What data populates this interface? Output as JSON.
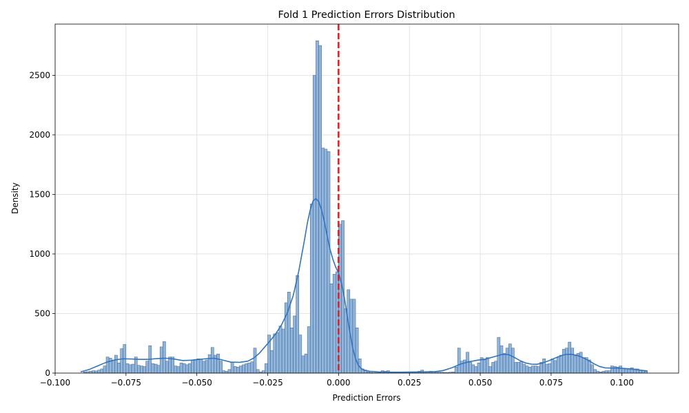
{
  "chart_data": {
    "type": "bar",
    "title": "Fold 1 Prediction Errors Distribution",
    "xlabel": "Prediction Errors",
    "ylabel": "Density",
    "xlim": [
      -0.1,
      0.12
    ],
    "ylim": [
      0,
      2930
    ],
    "grid": true,
    "x_ticks": [
      -0.1,
      -0.075,
      -0.05,
      -0.025,
      0.0,
      0.025,
      0.05,
      0.075,
      0.1
    ],
    "x_tick_labels": [
      "−0.100",
      "−0.075",
      "−0.050",
      "−0.025",
      "0.000",
      "0.025",
      "0.050",
      "0.075",
      "0.100"
    ],
    "y_ticks": [
      0,
      500,
      1000,
      1500,
      2000,
      2500
    ],
    "y_tick_labels": [
      "0",
      "500",
      "1000",
      "1500",
      "2000",
      "2500"
    ],
    "bar_color": "#8fb5dd",
    "bar_edge_color": "#3b5f86",
    "kde_color": "#2d74c7",
    "reference_line": {
      "x": 0.0,
      "color": "#e31a1c",
      "style": "dashed"
    },
    "bins": [
      [
        -0.09,
        10
      ],
      [
        -0.089,
        12
      ],
      [
        -0.088,
        15
      ],
      [
        -0.087,
        20
      ],
      [
        -0.086,
        18
      ],
      [
        -0.085,
        25
      ],
      [
        -0.084,
        35
      ],
      [
        -0.083,
        60
      ],
      [
        -0.082,
        135
      ],
      [
        -0.081,
        125
      ],
      [
        -0.08,
        110
      ],
      [
        -0.079,
        150
      ],
      [
        -0.078,
        85
      ],
      [
        -0.077,
        205
      ],
      [
        -0.076,
        240
      ],
      [
        -0.075,
        80
      ],
      [
        -0.074,
        70
      ],
      [
        -0.073,
        75
      ],
      [
        -0.072,
        135
      ],
      [
        -0.071,
        65
      ],
      [
        -0.07,
        60
      ],
      [
        -0.069,
        55
      ],
      [
        -0.068,
        100
      ],
      [
        -0.067,
        230
      ],
      [
        -0.066,
        80
      ],
      [
        -0.065,
        75
      ],
      [
        -0.064,
        65
      ],
      [
        -0.063,
        220
      ],
      [
        -0.062,
        265
      ],
      [
        -0.061,
        100
      ],
      [
        -0.06,
        135
      ],
      [
        -0.059,
        135
      ],
      [
        -0.058,
        60
      ],
      [
        -0.057,
        55
      ],
      [
        -0.056,
        85
      ],
      [
        -0.055,
        80
      ],
      [
        -0.054,
        70
      ],
      [
        -0.053,
        80
      ],
      [
        -0.052,
        110
      ],
      [
        -0.051,
        115
      ],
      [
        -0.05,
        120
      ],
      [
        -0.049,
        115
      ],
      [
        -0.048,
        100
      ],
      [
        -0.047,
        110
      ],
      [
        -0.046,
        155
      ],
      [
        -0.045,
        215
      ],
      [
        -0.044,
        150
      ],
      [
        -0.043,
        160
      ],
      [
        -0.042,
        100
      ],
      [
        -0.041,
        20
      ],
      [
        -0.04,
        15
      ],
      [
        -0.039,
        30
      ],
      [
        -0.038,
        90
      ],
      [
        -0.037,
        55
      ],
      [
        -0.036,
        50
      ],
      [
        -0.035,
        60
      ],
      [
        -0.034,
        70
      ],
      [
        -0.033,
        80
      ],
      [
        -0.032,
        85
      ],
      [
        -0.031,
        95
      ],
      [
        -0.03,
        210
      ],
      [
        -0.029,
        30
      ],
      [
        -0.028,
        10
      ],
      [
        -0.027,
        20
      ],
      [
        -0.026,
        80
      ],
      [
        -0.025,
        320
      ],
      [
        -0.024,
        190
      ],
      [
        -0.023,
        330
      ],
      [
        -0.022,
        340
      ],
      [
        -0.021,
        395
      ],
      [
        -0.02,
        370
      ],
      [
        -0.019,
        590
      ],
      [
        -0.018,
        680
      ],
      [
        -0.017,
        380
      ],
      [
        -0.016,
        480
      ],
      [
        -0.015,
        820
      ],
      [
        -0.014,
        320
      ],
      [
        -0.013,
        145
      ],
      [
        -0.012,
        160
      ],
      [
        -0.011,
        390
      ],
      [
        -0.01,
        1420
      ],
      [
        -0.009,
        2500
      ],
      [
        -0.008,
        2790
      ],
      [
        -0.007,
        2750
      ],
      [
        -0.006,
        1890
      ],
      [
        -0.005,
        1880
      ],
      [
        -0.004,
        1860
      ],
      [
        -0.003,
        750
      ],
      [
        -0.002,
        830
      ],
      [
        -0.001,
        850
      ],
      [
        0.0,
        1250
      ],
      [
        0.001,
        1280
      ],
      [
        0.002,
        540
      ],
      [
        0.003,
        700
      ],
      [
        0.004,
        620
      ],
      [
        0.005,
        620
      ],
      [
        0.006,
        380
      ],
      [
        0.007,
        120
      ],
      [
        0.008,
        35
      ],
      [
        0.009,
        25
      ],
      [
        0.01,
        10
      ],
      [
        0.011,
        5
      ],
      [
        0.012,
        3
      ],
      [
        0.013,
        3
      ],
      [
        0.014,
        5
      ],
      [
        0.015,
        20
      ],
      [
        0.016,
        15
      ],
      [
        0.017,
        20
      ],
      [
        0.018,
        10
      ],
      [
        0.019,
        10
      ],
      [
        0.02,
        8
      ],
      [
        0.021,
        8
      ],
      [
        0.022,
        10
      ],
      [
        0.023,
        10
      ],
      [
        0.024,
        10
      ],
      [
        0.025,
        8
      ],
      [
        0.026,
        10
      ],
      [
        0.027,
        10
      ],
      [
        0.028,
        15
      ],
      [
        0.029,
        25
      ],
      [
        0.03,
        10
      ],
      [
        0.031,
        10
      ],
      [
        0.032,
        15
      ],
      [
        0.033,
        10
      ],
      [
        0.034,
        8
      ],
      [
        0.035,
        8
      ],
      [
        0.036,
        8
      ],
      [
        0.037,
        5
      ],
      [
        0.038,
        5
      ],
      [
        0.039,
        8
      ],
      [
        0.04,
        10
      ],
      [
        0.041,
        50
      ],
      [
        0.042,
        210
      ],
      [
        0.043,
        100
      ],
      [
        0.044,
        110
      ],
      [
        0.045,
        175
      ],
      [
        0.046,
        90
      ],
      [
        0.047,
        70
      ],
      [
        0.048,
        55
      ],
      [
        0.049,
        85
      ],
      [
        0.05,
        130
      ],
      [
        0.051,
        110
      ],
      [
        0.052,
        130
      ],
      [
        0.053,
        55
      ],
      [
        0.054,
        90
      ],
      [
        0.055,
        100
      ],
      [
        0.056,
        300
      ],
      [
        0.057,
        230
      ],
      [
        0.058,
        165
      ],
      [
        0.059,
        210
      ],
      [
        0.06,
        245
      ],
      [
        0.061,
        210
      ],
      [
        0.062,
        90
      ],
      [
        0.063,
        90
      ],
      [
        0.064,
        95
      ],
      [
        0.065,
        75
      ],
      [
        0.066,
        60
      ],
      [
        0.067,
        50
      ],
      [
        0.068,
        60
      ],
      [
        0.069,
        60
      ],
      [
        0.07,
        55
      ],
      [
        0.071,
        90
      ],
      [
        0.072,
        120
      ],
      [
        0.073,
        75
      ],
      [
        0.074,
        80
      ],
      [
        0.075,
        120
      ],
      [
        0.076,
        105
      ],
      [
        0.077,
        130
      ],
      [
        0.078,
        150
      ],
      [
        0.079,
        200
      ],
      [
        0.08,
        210
      ],
      [
        0.081,
        260
      ],
      [
        0.082,
        210
      ],
      [
        0.083,
        145
      ],
      [
        0.084,
        165
      ],
      [
        0.085,
        175
      ],
      [
        0.086,
        130
      ],
      [
        0.087,
        130
      ],
      [
        0.088,
        110
      ],
      [
        0.089,
        70
      ],
      [
        0.09,
        30
      ],
      [
        0.091,
        15
      ],
      [
        0.092,
        10
      ],
      [
        0.093,
        15
      ],
      [
        0.094,
        20
      ],
      [
        0.095,
        20
      ],
      [
        0.096,
        60
      ],
      [
        0.097,
        55
      ],
      [
        0.098,
        50
      ],
      [
        0.099,
        60
      ],
      [
        0.1,
        40
      ],
      [
        0.101,
        35
      ],
      [
        0.102,
        35
      ],
      [
        0.103,
        45
      ],
      [
        0.104,
        35
      ],
      [
        0.105,
        35
      ],
      [
        0.106,
        25
      ],
      [
        0.107,
        20
      ],
      [
        0.108,
        15
      ]
    ],
    "kde": [
      [
        -0.091,
        10
      ],
      [
        -0.088,
        30
      ],
      [
        -0.085,
        60
      ],
      [
        -0.082,
        90
      ],
      [
        -0.079,
        110
      ],
      [
        -0.076,
        120
      ],
      [
        -0.073,
        118
      ],
      [
        -0.07,
        115
      ],
      [
        -0.067,
        115
      ],
      [
        -0.064,
        122
      ],
      [
        -0.061,
        125
      ],
      [
        -0.058,
        118
      ],
      [
        -0.055,
        105
      ],
      [
        -0.052,
        108
      ],
      [
        -0.049,
        115
      ],
      [
        -0.046,
        122
      ],
      [
        -0.044,
        125
      ],
      [
        -0.041,
        110
      ],
      [
        -0.038,
        92
      ],
      [
        -0.035,
        90
      ],
      [
        -0.032,
        100
      ],
      [
        -0.03,
        125
      ],
      [
        -0.028,
        165
      ],
      [
        -0.026,
        220
      ],
      [
        -0.024,
        275
      ],
      [
        -0.022,
        335
      ],
      [
        -0.02,
        410
      ],
      [
        -0.018,
        510
      ],
      [
        -0.016,
        650
      ],
      [
        -0.014,
        860
      ],
      [
        -0.012,
        1120
      ],
      [
        -0.011,
        1260
      ],
      [
        -0.01,
        1370
      ],
      [
        -0.009,
        1445
      ],
      [
        -0.008,
        1465
      ],
      [
        -0.007,
        1440
      ],
      [
        -0.006,
        1370
      ],
      [
        -0.005,
        1270
      ],
      [
        -0.004,
        1150
      ],
      [
        -0.003,
        1040
      ],
      [
        -0.002,
        955
      ],
      [
        -0.001,
        890
      ],
      [
        0.0,
        840
      ],
      [
        0.001,
        760
      ],
      [
        0.002,
        640
      ],
      [
        0.003,
        490
      ],
      [
        0.004,
        340
      ],
      [
        0.005,
        210
      ],
      [
        0.006,
        120
      ],
      [
        0.007,
        65
      ],
      [
        0.008,
        38
      ],
      [
        0.009,
        25
      ],
      [
        0.011,
        15
      ],
      [
        0.014,
        10
      ],
      [
        0.018,
        8
      ],
      [
        0.022,
        8
      ],
      [
        0.026,
        9
      ],
      [
        0.03,
        10
      ],
      [
        0.034,
        12
      ],
      [
        0.037,
        22
      ],
      [
        0.04,
        45
      ],
      [
        0.043,
        75
      ],
      [
        0.046,
        95
      ],
      [
        0.049,
        108
      ],
      [
        0.052,
        118
      ],
      [
        0.055,
        138
      ],
      [
        0.058,
        158
      ],
      [
        0.06,
        155
      ],
      [
        0.062,
        132
      ],
      [
        0.064,
        105
      ],
      [
        0.066,
        85
      ],
      [
        0.068,
        75
      ],
      [
        0.07,
        74
      ],
      [
        0.072,
        85
      ],
      [
        0.074,
        102
      ],
      [
        0.076,
        122
      ],
      [
        0.078,
        142
      ],
      [
        0.08,
        156
      ],
      [
        0.082,
        158
      ],
      [
        0.084,
        150
      ],
      [
        0.086,
        132
      ],
      [
        0.088,
        108
      ],
      [
        0.09,
        80
      ],
      [
        0.092,
        56
      ],
      [
        0.094,
        44
      ],
      [
        0.096,
        42
      ],
      [
        0.098,
        42
      ],
      [
        0.1,
        40
      ],
      [
        0.103,
        35
      ],
      [
        0.106,
        26
      ],
      [
        0.109,
        18
      ]
    ]
  }
}
